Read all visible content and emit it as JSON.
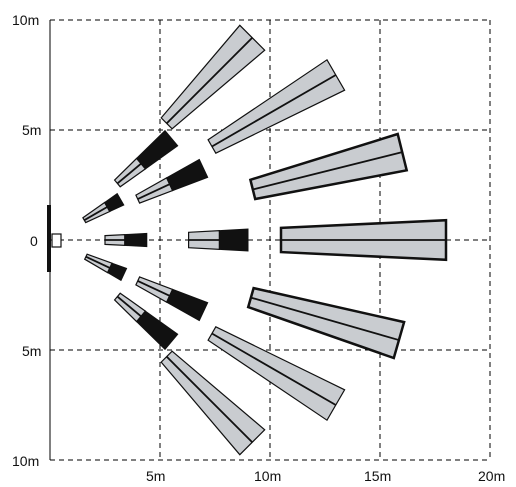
{
  "axis_labels": {
    "y_top": "10m",
    "y_upper": "5m",
    "y_center": "0",
    "y_lower": "5m",
    "y_bottom": "10m",
    "x_5": "5m",
    "x_10": "10m",
    "x_15": "15m",
    "x_20": "20m"
  },
  "grid": {
    "x_max_m": 20,
    "y_max_m": 10,
    "step_m": 5
  },
  "colors": {
    "zone_fill": "#c9ccd0",
    "zone_dark": "#111111",
    "grid": "#000000"
  },
  "detection_zones": {
    "long_range": [
      {
        "angle_deg": -45,
        "start_m": 7.5,
        "end_m": 13,
        "width_start_m": 0.7,
        "width_end_m": 1.6
      },
      {
        "angle_deg": -30,
        "start_m": 8.5,
        "end_m": 15,
        "width_start_m": 0.7,
        "width_end_m": 1.6
      },
      {
        "angle_deg": -14,
        "start_m": 9.5,
        "end_m": 16.5,
        "width_start_m": 0.9,
        "width_end_m": 1.7
      },
      {
        "angle_deg": 0,
        "start_m": 10.5,
        "end_m": 18,
        "width_start_m": 1.1,
        "width_end_m": 1.8
      },
      {
        "angle_deg": 16,
        "start_m": 9.5,
        "end_m": 16.5,
        "width_start_m": 0.9,
        "width_end_m": 1.7
      },
      {
        "angle_deg": 30,
        "start_m": 8.5,
        "end_m": 15,
        "width_start_m": 0.7,
        "width_end_m": 1.6
      },
      {
        "angle_deg": 45,
        "start_m": 7.5,
        "end_m": 13,
        "width_start_m": 0.7,
        "width_end_m": 1.6
      }
    ],
    "mid_range": [
      {
        "angle_deg": -40,
        "start_m": 4.0,
        "split_m": 5.4,
        "end_m": 7.2,
        "width_start_m": 0.4,
        "width_end_m": 0.9
      },
      {
        "angle_deg": -25,
        "start_m": 4.4,
        "split_m": 6.0,
        "end_m": 7.7,
        "width_start_m": 0.4,
        "width_end_m": 0.9
      },
      {
        "angle_deg": 0,
        "start_m": 6.3,
        "split_m": 7.7,
        "end_m": 9.0,
        "width_start_m": 0.7,
        "width_end_m": 1.0
      },
      {
        "angle_deg": 25,
        "start_m": 4.4,
        "split_m": 6.0,
        "end_m": 7.7,
        "width_start_m": 0.4,
        "width_end_m": 0.9
      },
      {
        "angle_deg": 40,
        "start_m": 4.0,
        "split_m": 5.4,
        "end_m": 7.2,
        "width_start_m": 0.4,
        "width_end_m": 0.9
      }
    ],
    "short_range": [
      {
        "angle_deg": -30,
        "start_m": 1.8,
        "split_m": 3.0,
        "end_m": 3.7,
        "width_start_m": 0.25,
        "width_end_m": 0.6
      },
      {
        "angle_deg": 0,
        "start_m": 2.5,
        "split_m": 3.4,
        "end_m": 4.4,
        "width_start_m": 0.4,
        "width_end_m": 0.6
      },
      {
        "angle_deg": 25,
        "start_m": 1.8,
        "split_m": 3.0,
        "end_m": 3.7,
        "width_start_m": 0.25,
        "width_end_m": 0.6
      }
    ]
  }
}
